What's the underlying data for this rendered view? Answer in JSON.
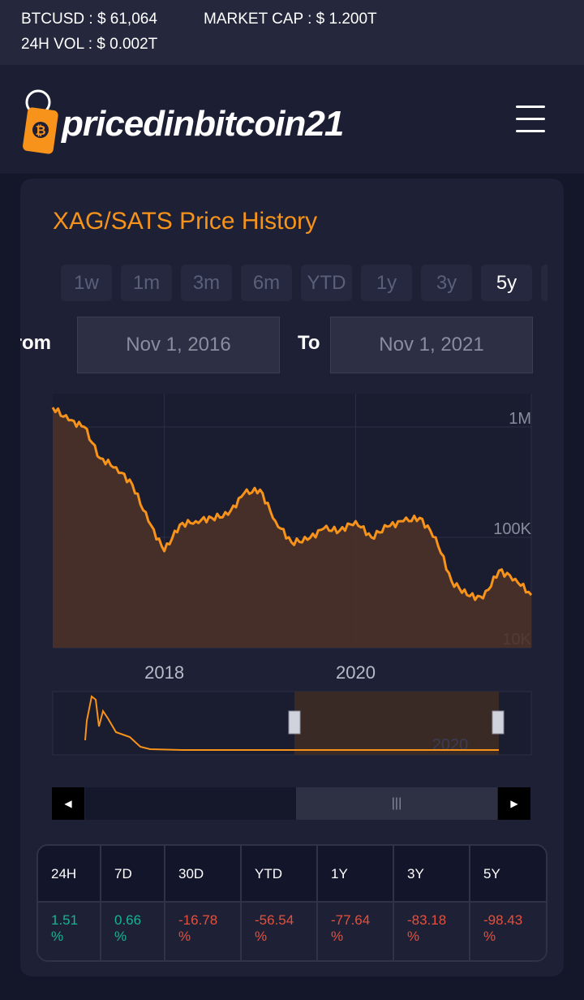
{
  "ticker": {
    "btcusd": "BTCUSD : $ 61,064",
    "market_cap": "MARKET CAP : $ 1.200T",
    "vol_24h": "24H VOL : $ 0.002T"
  },
  "header": {
    "logo_text": "pricedinbitcoin21",
    "menu_icon": "hamburger-menu-icon"
  },
  "card": {
    "title": "XAG/SATS Price History",
    "ranges": [
      "1w",
      "1m",
      "3m",
      "6m",
      "YTD",
      "1y",
      "3y",
      "5y"
    ],
    "active_range": "5y",
    "from_label": "From",
    "from_value": "Nov 1, 2016",
    "to_label": "To",
    "to_value": "Nov 1, 2021"
  },
  "chart_data": {
    "type": "area",
    "title": "",
    "xlabel": "",
    "ylabel": "",
    "y_scale": "log",
    "ylim": [
      10000,
      2000000
    ],
    "y_ticks": [
      "10K",
      "100K",
      "1M"
    ],
    "x_ticks": [
      "2018",
      "2020"
    ],
    "x": [
      "2016-11",
      "2017-01",
      "2017-03",
      "2017-05",
      "2017-07",
      "2017-09",
      "2017-11",
      "2018-01",
      "2018-03",
      "2018-05",
      "2018-07",
      "2018-09",
      "2018-11",
      "2019-01",
      "2019-03",
      "2019-05",
      "2019-07",
      "2019-09",
      "2019-11",
      "2020-01",
      "2020-03",
      "2020-05",
      "2020-07",
      "2020-09",
      "2020-11",
      "2021-01",
      "2021-03",
      "2021-05",
      "2021-07",
      "2021-09",
      "2021-11"
    ],
    "series": [
      {
        "values": [
          1500000,
          1150000,
          1000000,
          520000,
          430000,
          300000,
          140000,
          75000,
          130000,
          140000,
          150000,
          160000,
          250000,
          270000,
          140000,
          90000,
          95000,
          120000,
          115000,
          140000,
          100000,
          125000,
          140000,
          150000,
          100000,
          40000,
          30000,
          28000,
          50000,
          42000,
          30000
        ],
        "color": "#f7931a"
      }
    ],
    "navigator_x_label": "2020",
    "color_line": "#f7931a",
    "color_fill": "#4a3228"
  },
  "performance": {
    "headers": [
      "24H",
      "7D",
      "30D",
      "YTD",
      "1Y",
      "3Y",
      "5Y"
    ],
    "values": [
      "1.51",
      "0.66",
      "-16.78",
      "-56.54",
      "-77.64",
      "-83.18",
      "-98.43"
    ],
    "signs": [
      "pos",
      "pos",
      "neg",
      "neg",
      "neg",
      "neg",
      "neg"
    ],
    "unit": "%"
  }
}
